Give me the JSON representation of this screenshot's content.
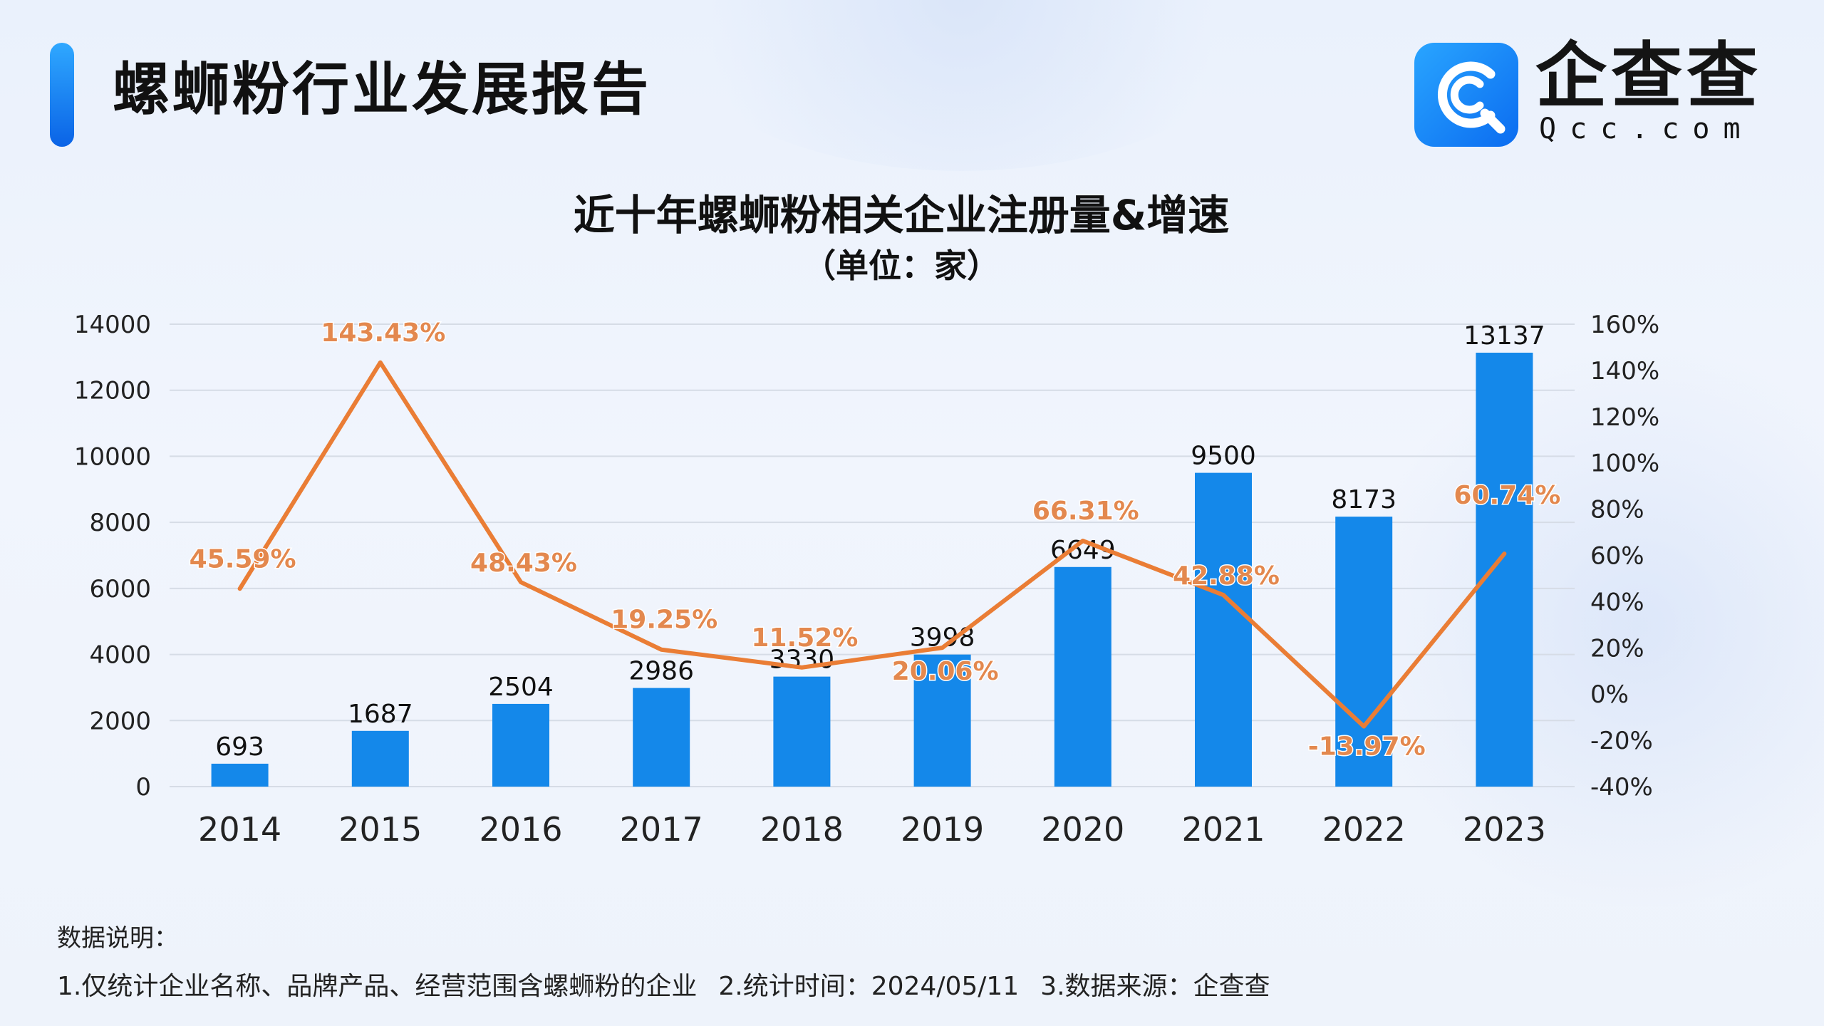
{
  "report": {
    "title": "螺蛳粉行业发展报告"
  },
  "brand": {
    "name": "企查查",
    "domain": "Qcc.com",
    "colors": {
      "logo_primary": "#1479ee",
      "bar": "#1488ea",
      "line": "#ea7d35",
      "line_label": "#e3884e"
    }
  },
  "chart_data": {
    "type": "bar",
    "title": "近十年螺蛳粉相关企业注册量&增速",
    "subtitle": "（单位：家）",
    "categories": [
      "2014",
      "2015",
      "2016",
      "2017",
      "2018",
      "2019",
      "2020",
      "2021",
      "2022",
      "2023"
    ],
    "series": [
      {
        "name": "注册量",
        "type": "bar",
        "axis": "left",
        "values": [
          693,
          1687,
          2504,
          2986,
          3330,
          3998,
          6649,
          9500,
          8173,
          13137
        ],
        "labels": [
          "693",
          "1687",
          "2504",
          "2986",
          "3330",
          "3998",
          "6649",
          "9500",
          "8173",
          "13137"
        ]
      },
      {
        "name": "增速",
        "type": "line",
        "axis": "right",
        "values": [
          45.59,
          143.43,
          48.43,
          19.25,
          11.52,
          20.06,
          66.31,
          42.88,
          -13.97,
          60.74
        ],
        "labels": [
          "45.59%",
          "143.43%",
          "48.43%",
          "19.25%",
          "11.52%",
          "20.06%",
          "66.31%",
          "42.88%",
          "-13.97%",
          "60.74%"
        ]
      }
    ],
    "y_left": {
      "ylim": [
        0,
        14000
      ],
      "ticks": [
        "0",
        "2000",
        "4000",
        "6000",
        "8000",
        "10000",
        "12000",
        "14000"
      ]
    },
    "y_right": {
      "ylim": [
        -40,
        160
      ],
      "ticks": [
        "-40%",
        "-20%",
        "0%",
        "20%",
        "40%",
        "60%",
        "80%",
        "100%",
        "120%",
        "140%",
        "160%"
      ]
    },
    "grid": true
  },
  "notes": {
    "heading": "数据说明：",
    "items": [
      "1.仅统计企业名称、品牌产品、经营范围含螺蛳粉的企业",
      "2.统计时间：2024/05/11",
      "3.数据来源：企查查"
    ]
  }
}
